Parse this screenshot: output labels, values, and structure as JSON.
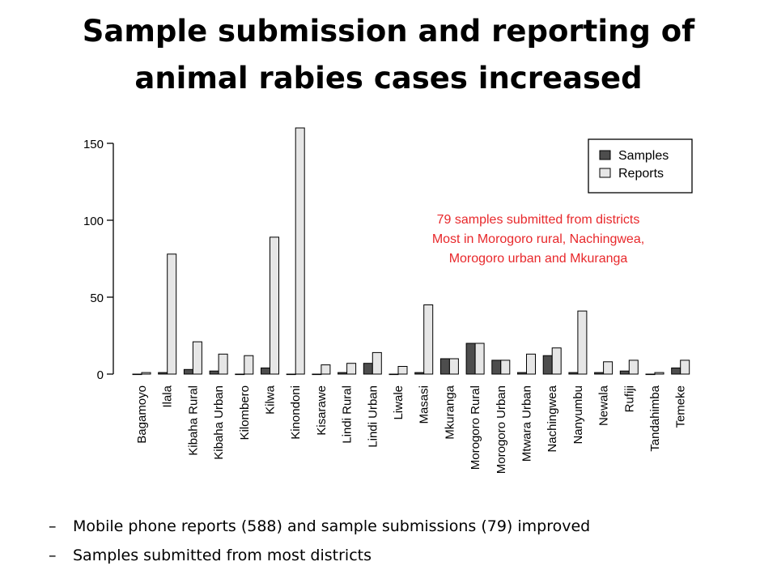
{
  "slide": {
    "title_line1": "Sample submission and reporting of",
    "title_line2": "animal rabies cases increased",
    "bullets": [
      "Mobile phone reports (588) and sample submissions (79) improved",
      "Samples submitted from most districts"
    ],
    "bullet_marker": "–"
  },
  "chart_data": {
    "type": "bar",
    "title": "",
    "xlabel": "",
    "ylabel": "",
    "ylim": [
      0,
      160
    ],
    "yticks": [
      0,
      50,
      100,
      150
    ],
    "grid": false,
    "legend_position": "top-right",
    "categories": [
      "Bagamoyo",
      "Ilala",
      "Kibaha Rural",
      "Kibaha Urban",
      "Kilombero",
      "Kilwa",
      "Kinondoni",
      "Kisarawe",
      "Lindi Rural",
      "Lindi Urban",
      "Liwale",
      "Masasi",
      "Mkuranga",
      "Morogoro Rural",
      "Morogoro Urban",
      "Mtwara Urban",
      "Nachingwea",
      "Nanyumbu",
      "Newala",
      "Rufiji",
      "Tandahimba",
      "Temeke"
    ],
    "series": [
      {
        "name": "Samples",
        "color": "#4d4d4d",
        "values": [
          0,
          1,
          3,
          2,
          0,
          4,
          0,
          0,
          1,
          7,
          0,
          1,
          10,
          20,
          9,
          1,
          12,
          1,
          1,
          2,
          0,
          4
        ]
      },
      {
        "name": "Reports",
        "color": "#e6e6e6",
        "values": [
          1,
          78,
          21,
          13,
          12,
          89,
          160,
          6,
          7,
          14,
          5,
          45,
          10,
          20,
          9,
          13,
          17,
          41,
          8,
          9,
          1,
          9
        ]
      }
    ],
    "annotation": {
      "lines": [
        "79 samples submitted from districts",
        "Most in Morogoro rural, Nachingwea,",
        "Morogoro urban and Mkuranga"
      ],
      "color": "#e8282b"
    }
  }
}
